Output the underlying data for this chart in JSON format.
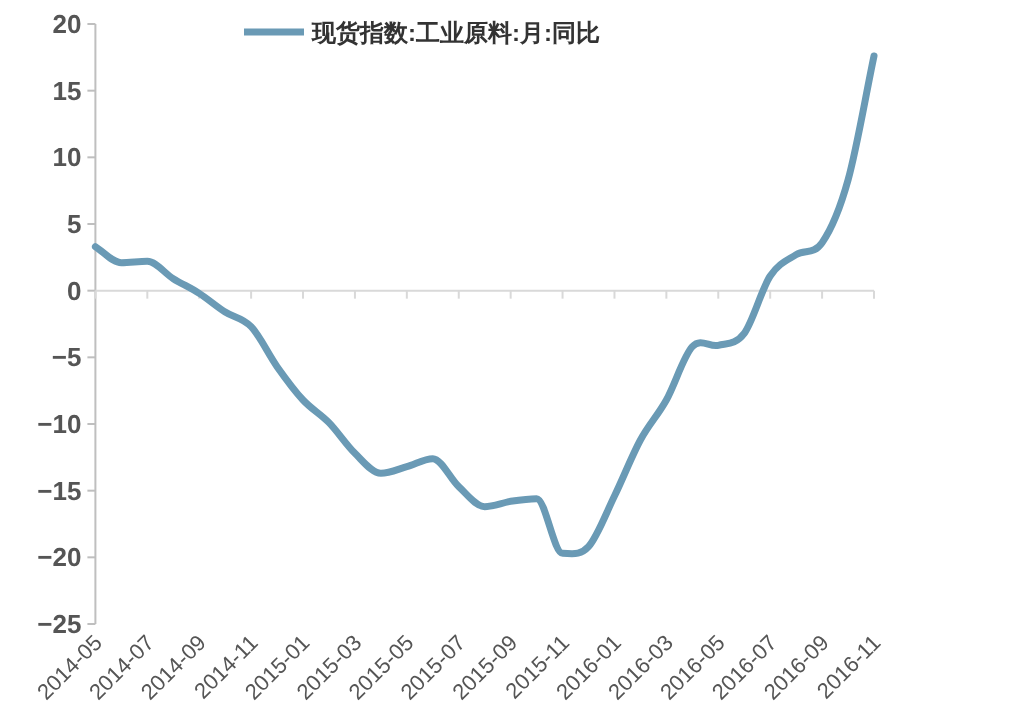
{
  "chart_data": {
    "type": "line",
    "legend": "top",
    "marker": "none",
    "line_style": "solid",
    "x": [
      "2014-05",
      "2014-06",
      "2014-07",
      "2014-08",
      "2014-09",
      "2014-10",
      "2014-11",
      "2014-12",
      "2015-01",
      "2015-02",
      "2015-03",
      "2015-04",
      "2015-05",
      "2015-06",
      "2015-07",
      "2015-08",
      "2015-09",
      "2015-10",
      "2015-11",
      "2015-12",
      "2016-01",
      "2016-02",
      "2016-03",
      "2016-04",
      "2016-05",
      "2016-06",
      "2016-07",
      "2016-08",
      "2016-09",
      "2016-10",
      "2016-11"
    ],
    "xlim": [
      "2014-05",
      "2016-11"
    ],
    "xticks": [
      "2014-05",
      "2014-07",
      "2014-09",
      "2014-11",
      "2015-01",
      "2015-03",
      "2015-05",
      "2015-07",
      "2015-09",
      "2015-11",
      "2016-01",
      "2016-03",
      "2016-05",
      "2016-07",
      "2016-09",
      "2016-11"
    ],
    "ylim": [
      -25,
      20
    ],
    "yticks": [
      -25,
      -20,
      -15,
      -10,
      -5,
      0,
      5,
      10,
      15,
      20
    ],
    "series": [
      {
        "name": "现货指数:工业原料:月:同比",
        "color": "#6a9ab5",
        "values": [
          3.3,
          2.1,
          2.2,
          0.9,
          -0.2,
          -1.6,
          -2.7,
          -5.7,
          -8.2,
          -9.9,
          -12.2,
          -13.7,
          -13.2,
          -12.6,
          -14.7,
          -16.2,
          -15.8,
          -15.6,
          -19.7,
          -19.2,
          -15.4,
          -11.2,
          -8.2,
          -4.2,
          -4.1,
          -3.2,
          1.1,
          2.7,
          3.6,
          8.3,
          17.6
        ]
      }
    ]
  }
}
